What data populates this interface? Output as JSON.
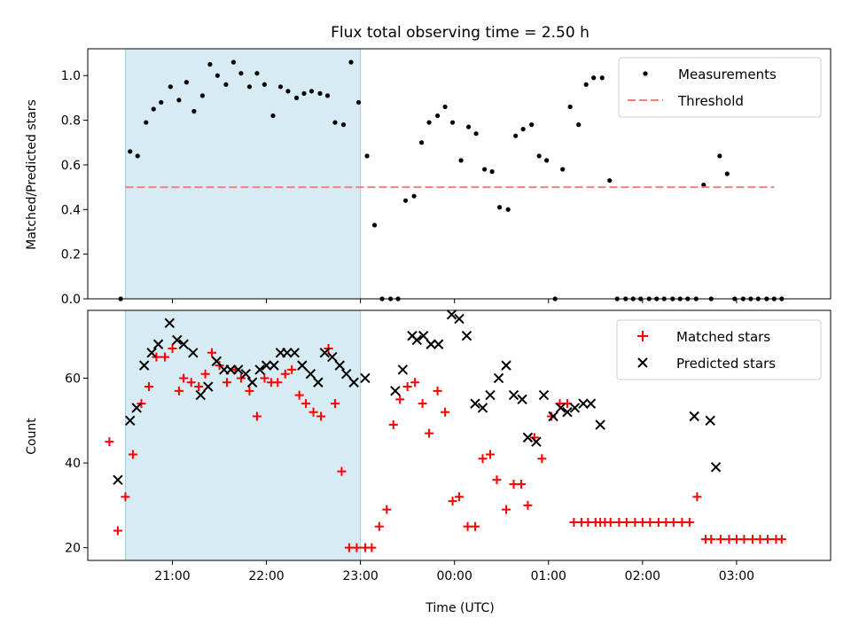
{
  "chart_data": {
    "type": "scatter",
    "title": "Flux total observing time = 2.50 h",
    "xlabel": "Time (UTC)",
    "x_tick_labels": [
      "21:00",
      "22:00",
      "23:00",
      "00:00",
      "01:00",
      "02:00",
      "03:00"
    ],
    "x_tick_hours": [
      21,
      22,
      23,
      24,
      25,
      26,
      27
    ],
    "xlim": [
      20.1,
      28.0
    ],
    "shaded_region": {
      "start": 20.5,
      "end": 23.0,
      "color": "#add8e6"
    },
    "panels": [
      {
        "ylabel": "Matched/Predicted stars",
        "ylim": [
          0,
          1.12
        ],
        "y_ticks": [
          0.0,
          0.2,
          0.4,
          0.6,
          0.8,
          1.0
        ],
        "y_tick_labels": [
          "0.0",
          "0.2",
          "0.4",
          "0.6",
          "0.8",
          "1.0"
        ],
        "legend": {
          "position": "top-right",
          "entries": [
            "Measurements",
            "Threshold"
          ]
        },
        "series": [
          {
            "name": "Measurements",
            "marker": "dot",
            "color": "#000000",
            "x": [
              20.45,
              20.55,
              20.63,
              20.72,
              20.8,
              20.88,
              20.98,
              21.07,
              21.15,
              21.23,
              21.32,
              21.4,
              21.48,
              21.57,
              21.65,
              21.73,
              21.82,
              21.9,
              21.98,
              22.07,
              22.15,
              22.23,
              22.32,
              22.4,
              22.48,
              22.57,
              22.65,
              22.73,
              22.82,
              22.9,
              22.98,
              23.07,
              23.15,
              23.23,
              23.32,
              23.4,
              23.48,
              23.57,
              23.65,
              23.73,
              23.82,
              23.9,
              23.98,
              24.07,
              24.15,
              24.23,
              24.32,
              24.4,
              24.48,
              24.57,
              24.65,
              24.73,
              24.82,
              24.9,
              24.98,
              25.07,
              25.15,
              25.23,
              25.32,
              25.4,
              25.48,
              25.57,
              25.65,
              25.73,
              25.82,
              25.9,
              25.98,
              26.07,
              26.15,
              26.23,
              26.32,
              26.4,
              26.48,
              26.57,
              26.65,
              26.73,
              26.82,
              26.9,
              26.98,
              27.07,
              27.15,
              27.23,
              27.32,
              27.4,
              27.48
            ],
            "y": [
              0.0,
              0.66,
              0.64,
              0.79,
              0.85,
              0.88,
              0.95,
              0.89,
              0.97,
              0.84,
              0.91,
              1.05,
              1.0,
              0.96,
              1.06,
              1.01,
              0.95,
              1.01,
              0.96,
              0.82,
              0.95,
              0.93,
              0.9,
              0.92,
              0.93,
              0.92,
              0.91,
              0.79,
              0.78,
              1.06,
              0.88,
              0.64,
              0.33,
              0.0,
              0.0,
              0.0,
              0.44,
              0.46,
              0.7,
              0.79,
              0.82,
              0.86,
              0.79,
              0.62,
              0.77,
              0.74,
              0.58,
              0.57,
              0.41,
              0.4,
              0.73,
              0.76,
              0.78,
              0.64,
              0.62,
              0.0,
              0.58,
              0.86,
              0.78,
              0.96,
              0.99,
              0.99,
              0.53,
              0.0,
              0.0,
              0.0,
              0.0,
              0.0,
              0.0,
              0.0,
              0.0,
              0.0,
              0.0,
              0.0,
              0.51,
              0.0,
              0.64,
              0.56,
              0.0,
              0.0,
              0.0,
              0.0,
              0.0,
              0.0,
              0.0
            ]
          },
          {
            "name": "Threshold",
            "type": "line",
            "style": "dashed",
            "color": "#f08080",
            "x": [
              20.5,
              27.4
            ],
            "y": [
              0.5,
              0.5
            ]
          }
        ]
      },
      {
        "ylabel": "Count",
        "ylim": [
          17,
          76
        ],
        "y_ticks": [
          20,
          40,
          60
        ],
        "y_tick_labels": [
          "20",
          "40",
          "60"
        ],
        "legend": {
          "position": "top-right",
          "entries": [
            "Matched stars",
            "Predicted stars"
          ]
        },
        "series": [
          {
            "name": "Matched stars",
            "marker": "plus",
            "color": "#ff0000",
            "x": [
              20.33,
              20.42,
              20.5,
              20.58,
              20.67,
              20.75,
              20.83,
              20.92,
              21.0,
              21.07,
              21.12,
              21.2,
              21.28,
              21.35,
              21.42,
              21.5,
              21.58,
              21.67,
              21.73,
              21.82,
              21.9,
              21.98,
              22.05,
              22.12,
              22.2,
              22.27,
              22.35,
              22.42,
              22.5,
              22.58,
              22.66,
              22.73,
              22.8,
              22.88,
              22.96,
              23.05,
              23.12,
              23.2,
              23.28,
              23.35,
              23.42,
              23.5,
              23.58,
              23.66,
              23.73,
              23.82,
              23.9,
              23.98,
              24.05,
              24.14,
              24.22,
              24.3,
              24.38,
              24.45,
              24.55,
              24.63,
              24.71,
              24.78,
              24.85,
              24.93,
              25.03,
              25.12,
              25.2,
              25.27,
              25.35,
              25.42,
              25.5,
              25.55,
              25.6,
              25.66,
              25.75,
              25.83,
              25.92,
              26.0,
              26.08,
              26.17,
              26.25,
              26.33,
              26.42,
              26.5,
              26.58,
              26.67,
              26.73,
              26.83,
              26.92,
              27.0,
              27.08,
              27.17,
              27.25,
              27.33,
              27.42,
              27.48
            ],
            "y": [
              45,
              24,
              32,
              42,
              54,
              58,
              65,
              65,
              67,
              57,
              60,
              59,
              58,
              61,
              66,
              63,
              59,
              62,
              60,
              57,
              51,
              60,
              59,
              59,
              61,
              62,
              56,
              54,
              52,
              51,
              67,
              54,
              38,
              20,
              20,
              20,
              20,
              25,
              29,
              49,
              55,
              58,
              59,
              54,
              47,
              57,
              52,
              31,
              32,
              25,
              25,
              41,
              42,
              36,
              29,
              35,
              35,
              30,
              46,
              41,
              51,
              54,
              54,
              26,
              26,
              26,
              26,
              26,
              26,
              26,
              26,
              26,
              26,
              26,
              26,
              26,
              26,
              26,
              26,
              26,
              32,
              22,
              22,
              22,
              22,
              22,
              22,
              22,
              22,
              22,
              22,
              22
            ]
          },
          {
            "name": "Predicted stars",
            "marker": "x",
            "color": "#000000",
            "x": [
              20.42,
              20.55,
              20.62,
              20.7,
              20.78,
              20.85,
              20.97,
              21.05,
              21.12,
              21.22,
              21.3,
              21.38,
              21.47,
              21.55,
              21.62,
              21.7,
              21.78,
              21.85,
              21.93,
              22.0,
              22.08,
              22.15,
              22.22,
              22.3,
              22.38,
              22.47,
              22.55,
              22.62,
              22.7,
              22.78,
              22.85,
              22.93,
              23.05,
              23.37,
              23.45,
              23.55,
              23.6,
              23.67,
              23.75,
              23.83,
              23.97,
              24.05,
              24.13,
              24.22,
              24.3,
              24.38,
              24.47,
              24.55,
              24.63,
              24.72,
              24.78,
              24.87,
              24.95,
              25.05,
              25.13,
              25.2,
              25.28,
              25.37,
              25.45,
              25.55,
              26.55,
              26.72,
              26.78
            ],
            "y": [
              36,
              50,
              53,
              63,
              66,
              68,
              73,
              69,
              68,
              66,
              56,
              58,
              64,
              62,
              62,
              62,
              61,
              59,
              62,
              63,
              63,
              66,
              66,
              66,
              63,
              61,
              59,
              66,
              65,
              63,
              61,
              59,
              60,
              57,
              62,
              70,
              69,
              70,
              68,
              68,
              75,
              74,
              70,
              54,
              53,
              56,
              60,
              63,
              56,
              55,
              46,
              45,
              56,
              51,
              53,
              52,
              53,
              54,
              54,
              49,
              51,
              50,
              39
            ]
          }
        ]
      }
    ]
  }
}
